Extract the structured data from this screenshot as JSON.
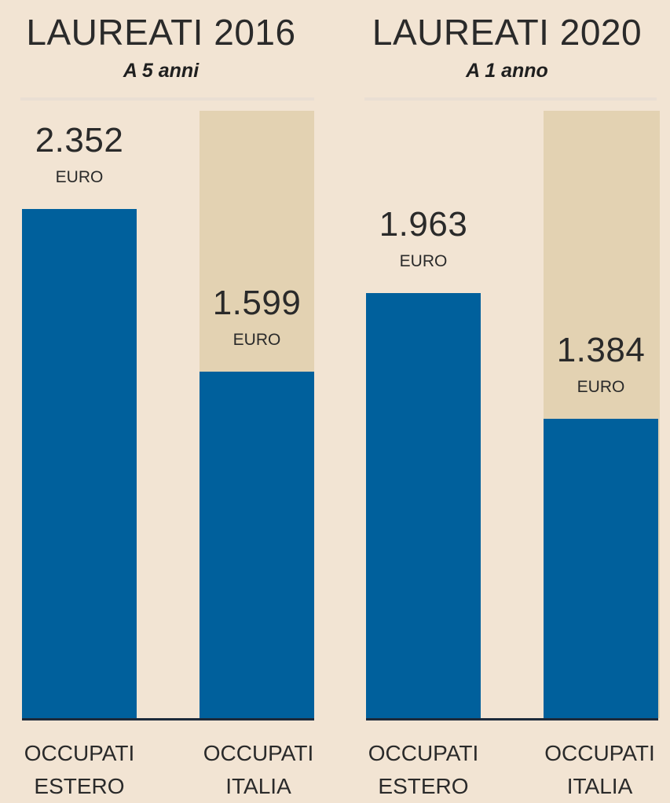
{
  "chart_data": [
    {
      "type": "bar",
      "title": "LAUREATI 2016",
      "subtitle": "A 5 anni",
      "categories": [
        {
          "line1": "OCCUPATI",
          "line2": "ESTERO"
        },
        {
          "line1": "OCCUPATI",
          "line2": "ITALIA"
        }
      ],
      "values": [
        2352,
        1599
      ],
      "value_labels": [
        "2.352",
        "1.599"
      ],
      "unit": "EURO",
      "ylim": [
        0,
        2800
      ],
      "colors": {
        "bar": "#00609c",
        "highlight_band": "#e3d2b2"
      }
    },
    {
      "type": "bar",
      "title": "LAUREATI 2020",
      "subtitle": "A 1 anno",
      "categories": [
        {
          "line1": "OCCUPATI",
          "line2": "ESTERO"
        },
        {
          "line1": "OCCUPATI",
          "line2": "ITALIA"
        }
      ],
      "values": [
        1963,
        1384
      ],
      "value_labels": [
        "1.963",
        "1.384"
      ],
      "unit": "EURO",
      "ylim": [
        0,
        2800
      ],
      "colors": {
        "bar": "#00609c",
        "highlight_band": "#e3d2b2"
      }
    }
  ]
}
